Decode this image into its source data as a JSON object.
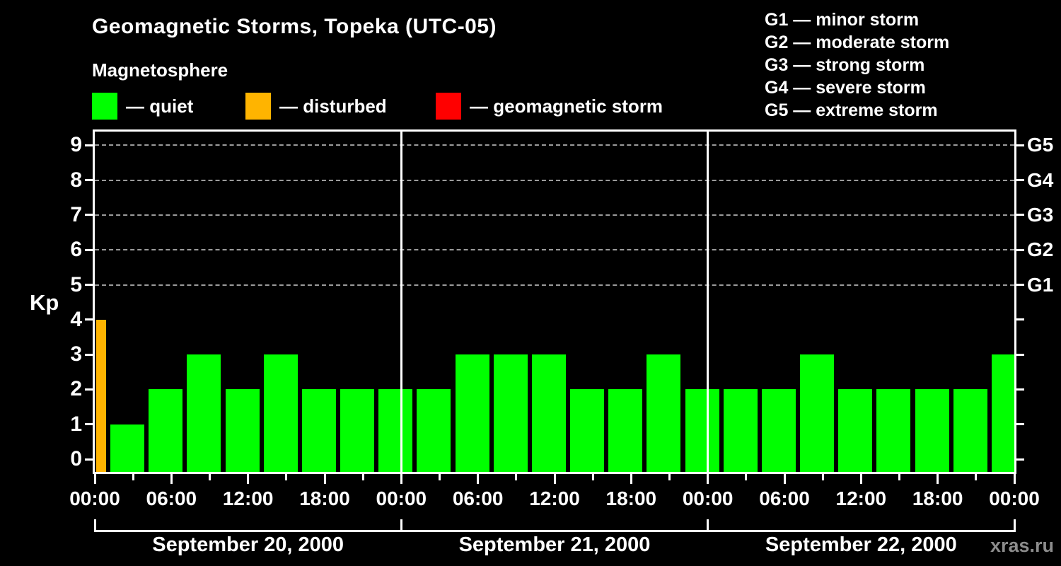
{
  "header": {
    "title": "Geomagnetic Storms, Topeka (UTC-05)",
    "subtitle": "Magnetosphere",
    "watermark": "xras.ru"
  },
  "colors": {
    "quiet": "#00ff00",
    "disturbed": "#ffb400",
    "storm": "#ff0000",
    "axis": "#ffffff",
    "grid": "#9b9b9b",
    "watermark_gray": "#8c8c8c",
    "background": "#000000"
  },
  "legend": {
    "items": [
      {
        "key": "quiet",
        "label": "— quiet"
      },
      {
        "key": "disturbed",
        "label": "— disturbed"
      },
      {
        "key": "storm",
        "label": "— geomagnetic storm"
      }
    ]
  },
  "g_legend": {
    "items": [
      "G1 — minor storm",
      "G2 — moderate storm",
      "G3 — strong storm",
      "G4 — severe storm",
      "G5 — extreme storm"
    ]
  },
  "chart_data": {
    "type": "bar",
    "title": "Geomagnetic Storms, Topeka (UTC-05)",
    "subtitle": "Magnetosphere",
    "ylabel": "Kp",
    "ylim": [
      0,
      9
    ],
    "yticks": [
      0,
      1,
      2,
      3,
      4,
      5,
      6,
      7,
      8,
      9
    ],
    "grid_levels": [
      5,
      6,
      7,
      8,
      9
    ],
    "grid_style": "dashed horizontal lines at storm levels only",
    "right_axis_labels": [
      {
        "kp": 5,
        "label": "G1"
      },
      {
        "kp": 6,
        "label": "G2"
      },
      {
        "kp": 7,
        "label": "G3"
      },
      {
        "kp": 8,
        "label": "G4"
      },
      {
        "kp": 9,
        "label": "G5"
      }
    ],
    "x_tick_labels": [
      "00:00",
      "06:00",
      "12:00",
      "18:00",
      "00:00",
      "06:00",
      "12:00",
      "18:00",
      "00:00",
      "06:00",
      "12:00",
      "18:00",
      "00:00"
    ],
    "x_major_tick_step_hours": 6,
    "x_minor_tick_step_hours": 3,
    "hours_per_bar": 3,
    "days": [
      {
        "date": "September 20, 2000",
        "kp": [
          1,
          2,
          3,
          2,
          3,
          2,
          2,
          2
        ]
      },
      {
        "date": "September 21, 2000",
        "kp": [
          2,
          3,
          3,
          3,
          2,
          2,
          3,
          2
        ]
      },
      {
        "date": "September 22, 2000",
        "kp": [
          2,
          2,
          3,
          2,
          2,
          2,
          2,
          3
        ]
      }
    ],
    "leading_partial_bar": {
      "kp": 4
    },
    "thresholds": {
      "disturbed_min": 4,
      "storm_min": 5
    },
    "legend_position": "top-left",
    "g_legend_position": "top-right"
  }
}
